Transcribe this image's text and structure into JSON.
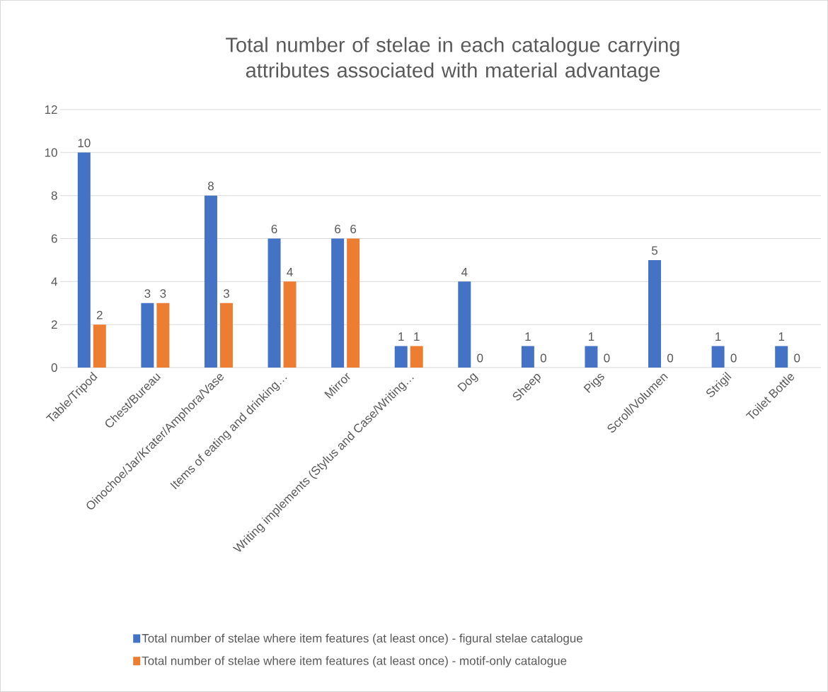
{
  "chart_data": {
    "type": "bar",
    "title": "Total number of stelae in each catalogue carrying attributes associated with material advantage",
    "categories": [
      "Table/Tripod",
      "Chest/Bureau",
      "Oinochoe/Jar/Krater/Amphora/Vase",
      "Items of eating and drinking…",
      "Mirror",
      "Writing implements (Stylus and Case/Writing…",
      "Dog",
      "Sheep",
      "Pigs",
      "Scroll/Volumen",
      "Strigil",
      "Toilet Bottle"
    ],
    "series": [
      {
        "name": "Total number of stelae where item features (at least once) - figural stelae catalogue",
        "color": "#4472c4",
        "values": [
          10,
          3,
          8,
          6,
          6,
          1,
          4,
          1,
          1,
          5,
          1,
          1
        ]
      },
      {
        "name": "Total number of stelae where item features (at least once) - motif-only catalogue",
        "color": "#ed7d31",
        "values": [
          2,
          3,
          3,
          4,
          6,
          1,
          0,
          0,
          0,
          0,
          0,
          0
        ]
      }
    ],
    "ylim": [
      0,
      12
    ],
    "yticks": [
      0,
      2,
      4,
      6,
      8,
      10,
      12
    ],
    "grid": "y",
    "data_labels": true,
    "legend": "bottom"
  }
}
